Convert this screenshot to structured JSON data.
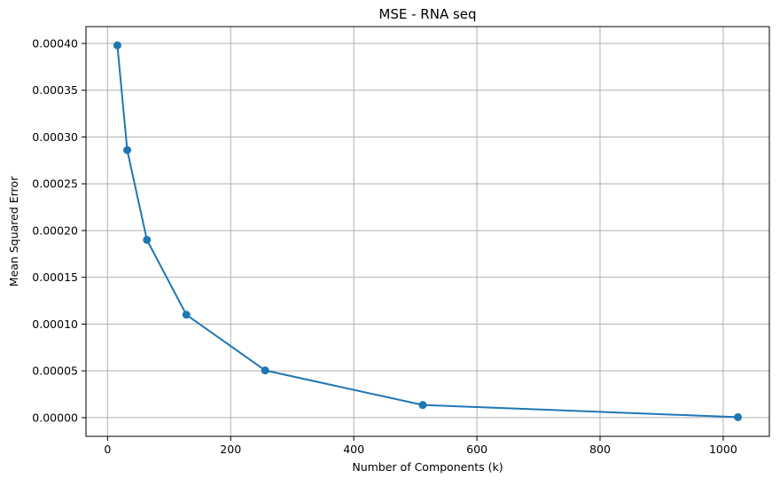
{
  "chart_data": {
    "type": "line",
    "title": "MSE - RNA seq",
    "xlabel": "Number of Components (k)",
    "ylabel": "Mean Squared Error",
    "x": [
      16,
      32,
      64,
      128,
      256,
      512,
      1024
    ],
    "series": [
      {
        "values": [
          0.000398,
          0.000286,
          0.00019,
          0.00011,
          5.05e-05,
          1.35e-05,
          5e-07
        ]
      }
    ],
    "xlim": [
      -35,
      1075
    ],
    "ylim": [
      -2e-05,
      0.000418
    ],
    "xticks": [
      0,
      200,
      400,
      600,
      800,
      1000
    ],
    "xtick_labels": [
      "0",
      "200",
      "400",
      "600",
      "800",
      "1000"
    ],
    "yticks": [
      0,
      5e-05,
      0.0001,
      0.00015,
      0.0002,
      0.00025,
      0.0003,
      0.00035,
      0.0004
    ],
    "ytick_labels": [
      "0.00000",
      "0.00005",
      "0.00010",
      "0.00015",
      "0.00020",
      "0.00025",
      "0.00030",
      "0.00035",
      "0.00040"
    ],
    "grid": true,
    "marker": "circle",
    "colors": {
      "line": "#1f77b4",
      "grid": "#b0b0b0",
      "axes": "#000000"
    }
  }
}
